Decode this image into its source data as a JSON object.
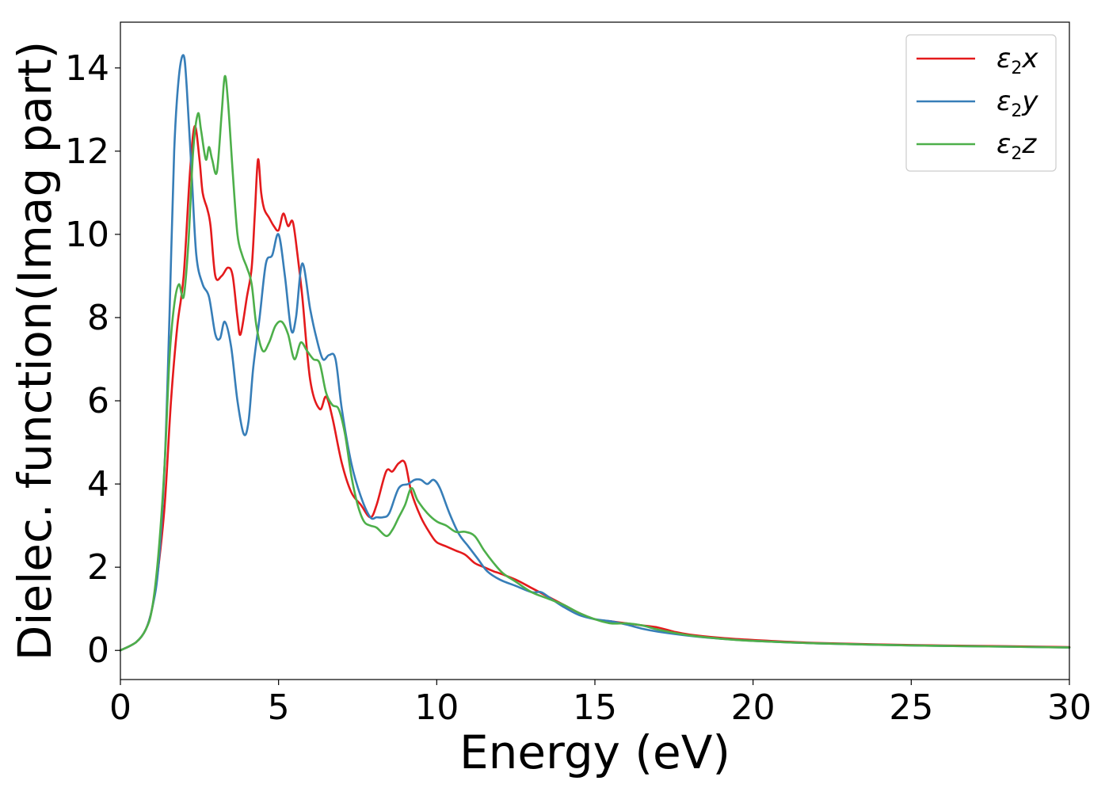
{
  "chart_data": {
    "type": "line",
    "xlabel": "Energy (eV)",
    "ylabel": "Dielec. function(Imag part)",
    "xlim": [
      0,
      30
    ],
    "ylim": [
      -0.7,
      15.1
    ],
    "xticks": [
      0,
      5,
      10,
      15,
      20,
      25,
      30
    ],
    "yticks": [
      0,
      2,
      4,
      6,
      8,
      10,
      12,
      14
    ],
    "grid": false,
    "legend_position": "top-right",
    "series": [
      {
        "name": "ε₂x",
        "legend_main": "ε",
        "legend_sub": "2",
        "legend_suffix": "x",
        "color": "#e41a1c",
        "points": [
          [
            0,
            0
          ],
          [
            0.5,
            0.2
          ],
          [
            0.8,
            0.5
          ],
          [
            1.0,
            1.0
          ],
          [
            1.2,
            2.0
          ],
          [
            1.4,
            3.5
          ],
          [
            1.6,
            6.0
          ],
          [
            1.8,
            7.8
          ],
          [
            2.0,
            9.0
          ],
          [
            2.2,
            11.5
          ],
          [
            2.35,
            12.6
          ],
          [
            2.5,
            11.8
          ],
          [
            2.6,
            11.0
          ],
          [
            2.75,
            10.6
          ],
          [
            2.85,
            10.2
          ],
          [
            3.0,
            9.0
          ],
          [
            3.2,
            9.0
          ],
          [
            3.4,
            9.2
          ],
          [
            3.55,
            9.0
          ],
          [
            3.7,
            8.0
          ],
          [
            3.8,
            7.6
          ],
          [
            4.0,
            8.5
          ],
          [
            4.15,
            9.2
          ],
          [
            4.25,
            10.5
          ],
          [
            4.35,
            11.8
          ],
          [
            4.45,
            11.0
          ],
          [
            4.55,
            10.6
          ],
          [
            4.7,
            10.4
          ],
          [
            4.85,
            10.2
          ],
          [
            5.0,
            10.1
          ],
          [
            5.15,
            10.5
          ],
          [
            5.3,
            10.2
          ],
          [
            5.45,
            10.3
          ],
          [
            5.6,
            9.5
          ],
          [
            5.75,
            8.5
          ],
          [
            6.0,
            6.5
          ],
          [
            6.3,
            5.8
          ],
          [
            6.5,
            6.1
          ],
          [
            6.7,
            5.6
          ],
          [
            7.0,
            4.5
          ],
          [
            7.3,
            3.8
          ],
          [
            7.6,
            3.5
          ],
          [
            7.9,
            3.2
          ],
          [
            8.1,
            3.5
          ],
          [
            8.4,
            4.3
          ],
          [
            8.6,
            4.3
          ],
          [
            8.8,
            4.5
          ],
          [
            9.0,
            4.5
          ],
          [
            9.2,
            3.8
          ],
          [
            9.5,
            3.2
          ],
          [
            9.8,
            2.8
          ],
          [
            10.0,
            2.6
          ],
          [
            10.3,
            2.5
          ],
          [
            10.6,
            2.4
          ],
          [
            10.9,
            2.3
          ],
          [
            11.2,
            2.1
          ],
          [
            11.5,
            2.0
          ],
          [
            11.8,
            1.9
          ],
          [
            12.0,
            1.85
          ],
          [
            12.5,
            1.7
          ],
          [
            13.0,
            1.5
          ],
          [
            13.5,
            1.3
          ],
          [
            14.0,
            1.1
          ],
          [
            14.5,
            0.9
          ],
          [
            15.0,
            0.75
          ],
          [
            15.5,
            0.7
          ],
          [
            16.0,
            0.65
          ],
          [
            16.5,
            0.6
          ],
          [
            17.0,
            0.55
          ],
          [
            17.5,
            0.45
          ],
          [
            18.0,
            0.38
          ],
          [
            19.0,
            0.3
          ],
          [
            20.0,
            0.25
          ],
          [
            22.0,
            0.18
          ],
          [
            25.0,
            0.13
          ],
          [
            28.0,
            0.1
          ],
          [
            30.0,
            0.08
          ]
        ]
      },
      {
        "name": "ε₂y",
        "legend_main": "ε",
        "legend_sub": "2",
        "legend_suffix": "y",
        "color": "#377eb8",
        "points": [
          [
            0,
            0
          ],
          [
            0.5,
            0.2
          ],
          [
            0.8,
            0.5
          ],
          [
            1.0,
            1.0
          ],
          [
            1.2,
            2.0
          ],
          [
            1.4,
            4.5
          ],
          [
            1.55,
            8.0
          ],
          [
            1.7,
            12.0
          ],
          [
            1.85,
            13.8
          ],
          [
            2.0,
            14.3
          ],
          [
            2.1,
            13.5
          ],
          [
            2.25,
            11.5
          ],
          [
            2.4,
            9.5
          ],
          [
            2.6,
            8.8
          ],
          [
            2.8,
            8.5
          ],
          [
            3.0,
            7.6
          ],
          [
            3.15,
            7.5
          ],
          [
            3.3,
            7.9
          ],
          [
            3.5,
            7.3
          ],
          [
            3.7,
            6.0
          ],
          [
            3.9,
            5.2
          ],
          [
            4.05,
            5.5
          ],
          [
            4.2,
            6.8
          ],
          [
            4.4,
            8.0
          ],
          [
            4.6,
            9.3
          ],
          [
            4.8,
            9.5
          ],
          [
            5.0,
            10.0
          ],
          [
            5.2,
            9.0
          ],
          [
            5.4,
            7.7
          ],
          [
            5.55,
            8.0
          ],
          [
            5.75,
            9.3
          ],
          [
            6.0,
            8.2
          ],
          [
            6.2,
            7.5
          ],
          [
            6.4,
            7.0
          ],
          [
            6.6,
            7.1
          ],
          [
            6.8,
            7.0
          ],
          [
            7.0,
            5.8
          ],
          [
            7.3,
            4.5
          ],
          [
            7.6,
            3.7
          ],
          [
            7.9,
            3.2
          ],
          [
            8.1,
            3.2
          ],
          [
            8.3,
            3.2
          ],
          [
            8.5,
            3.3
          ],
          [
            8.8,
            3.9
          ],
          [
            9.1,
            4.0
          ],
          [
            9.3,
            4.1
          ],
          [
            9.5,
            4.1
          ],
          [
            9.7,
            4.0
          ],
          [
            9.9,
            4.1
          ],
          [
            10.1,
            3.9
          ],
          [
            10.4,
            3.3
          ],
          [
            10.7,
            2.8
          ],
          [
            11.0,
            2.5
          ],
          [
            11.3,
            2.2
          ],
          [
            11.6,
            1.9
          ],
          [
            12.0,
            1.7
          ],
          [
            12.5,
            1.55
          ],
          [
            13.0,
            1.4
          ],
          [
            13.3,
            1.4
          ],
          [
            13.6,
            1.25
          ],
          [
            14.0,
            1.05
          ],
          [
            14.5,
            0.85
          ],
          [
            15.0,
            0.75
          ],
          [
            15.5,
            0.7
          ],
          [
            16.0,
            0.62
          ],
          [
            16.5,
            0.52
          ],
          [
            17.0,
            0.45
          ],
          [
            18.0,
            0.35
          ],
          [
            19.0,
            0.28
          ],
          [
            20.0,
            0.23
          ],
          [
            22.0,
            0.17
          ],
          [
            25.0,
            0.12
          ],
          [
            28.0,
            0.09
          ],
          [
            30.0,
            0.07
          ]
        ]
      },
      {
        "name": "ε₂z",
        "legend_main": "ε",
        "legend_sub": "2",
        "legend_suffix": "z",
        "color": "#4daf4a",
        "points": [
          [
            0,
            0
          ],
          [
            0.5,
            0.2
          ],
          [
            0.8,
            0.5
          ],
          [
            1.0,
            1.0
          ],
          [
            1.2,
            2.3
          ],
          [
            1.4,
            4.5
          ],
          [
            1.55,
            7.0
          ],
          [
            1.7,
            8.3
          ],
          [
            1.85,
            8.8
          ],
          [
            2.0,
            8.5
          ],
          [
            2.15,
            9.8
          ],
          [
            2.3,
            12.0
          ],
          [
            2.45,
            12.9
          ],
          [
            2.55,
            12.5
          ],
          [
            2.7,
            11.8
          ],
          [
            2.8,
            12.1
          ],
          [
            2.9,
            11.8
          ],
          [
            3.05,
            11.5
          ],
          [
            3.2,
            12.9
          ],
          [
            3.3,
            13.8
          ],
          [
            3.4,
            13.2
          ],
          [
            3.55,
            11.5
          ],
          [
            3.7,
            10.0
          ],
          [
            3.85,
            9.5
          ],
          [
            4.0,
            9.2
          ],
          [
            4.15,
            8.8
          ],
          [
            4.3,
            7.8
          ],
          [
            4.5,
            7.2
          ],
          [
            4.7,
            7.4
          ],
          [
            4.9,
            7.8
          ],
          [
            5.1,
            7.9
          ],
          [
            5.3,
            7.6
          ],
          [
            5.5,
            7.0
          ],
          [
            5.7,
            7.4
          ],
          [
            5.9,
            7.2
          ],
          [
            6.1,
            7.0
          ],
          [
            6.3,
            6.9
          ],
          [
            6.5,
            6.2
          ],
          [
            6.7,
            5.9
          ],
          [
            6.9,
            5.8
          ],
          [
            7.1,
            5.2
          ],
          [
            7.3,
            4.2
          ],
          [
            7.5,
            3.5
          ],
          [
            7.7,
            3.1
          ],
          [
            7.9,
            3.0
          ],
          [
            8.1,
            2.95
          ],
          [
            8.4,
            2.75
          ],
          [
            8.6,
            2.9
          ],
          [
            8.8,
            3.2
          ],
          [
            9.0,
            3.5
          ],
          [
            9.2,
            3.9
          ],
          [
            9.4,
            3.6
          ],
          [
            9.7,
            3.3
          ],
          [
            10.0,
            3.1
          ],
          [
            10.3,
            3.0
          ],
          [
            10.6,
            2.85
          ],
          [
            10.9,
            2.85
          ],
          [
            11.2,
            2.75
          ],
          [
            11.5,
            2.4
          ],
          [
            11.8,
            2.1
          ],
          [
            12.1,
            1.85
          ],
          [
            12.5,
            1.65
          ],
          [
            13.0,
            1.4
          ],
          [
            13.5,
            1.25
          ],
          [
            14.0,
            1.1
          ],
          [
            14.5,
            0.9
          ],
          [
            15.0,
            0.75
          ],
          [
            15.5,
            0.65
          ],
          [
            16.0,
            0.65
          ],
          [
            16.5,
            0.6
          ],
          [
            17.0,
            0.5
          ],
          [
            18.0,
            0.36
          ],
          [
            19.0,
            0.28
          ],
          [
            20.0,
            0.23
          ],
          [
            22.0,
            0.17
          ],
          [
            25.0,
            0.12
          ],
          [
            28.0,
            0.09
          ],
          [
            30.0,
            0.07
          ]
        ]
      }
    ]
  }
}
